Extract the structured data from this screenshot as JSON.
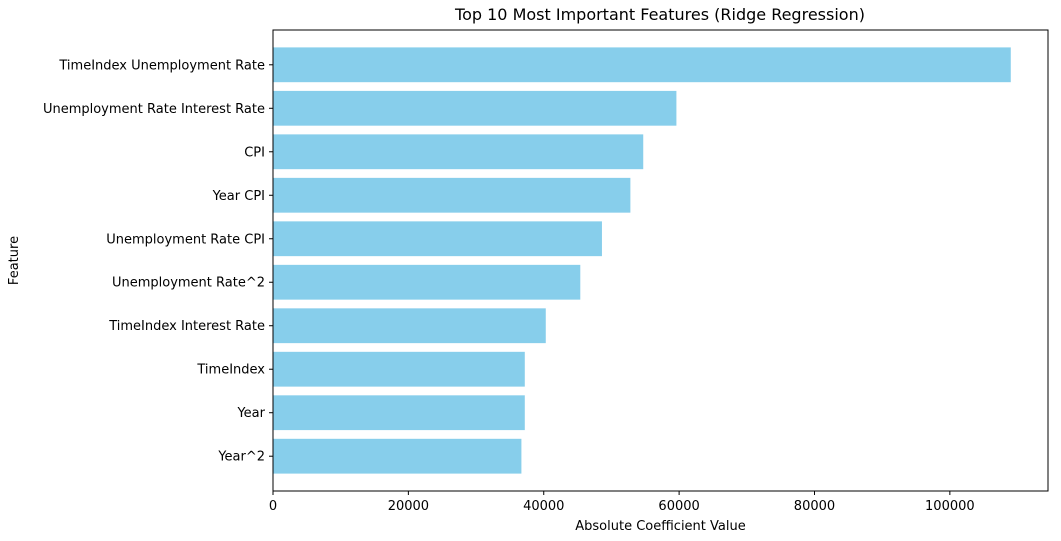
{
  "chart_data": {
    "type": "bar",
    "orientation": "horizontal",
    "title": "Top 10 Most Important Features (Ridge Regression)",
    "xlabel": "Absolute Coefficient Value",
    "ylabel": "Feature",
    "categories": [
      "TimeIndex Unemployment Rate",
      "Unemployment Rate Interest Rate",
      "CPI",
      "Year CPI",
      "Unemployment Rate CPI",
      "Unemployment Rate^2",
      "TimeIndex Interest Rate",
      "TimeIndex",
      "Year",
      "Year^2"
    ],
    "values": [
      109000,
      59600,
      54700,
      52800,
      48600,
      45400,
      40300,
      37200,
      37200,
      36700
    ],
    "xlim": [
      0,
      114500
    ],
    "xticks": [
      0,
      20000,
      40000,
      60000,
      80000,
      100000
    ],
    "xtick_labels": [
      "0",
      "20000",
      "40000",
      "60000",
      "80000",
      "100000"
    ],
    "grid": false,
    "bar_color": "#87ceeb"
  }
}
